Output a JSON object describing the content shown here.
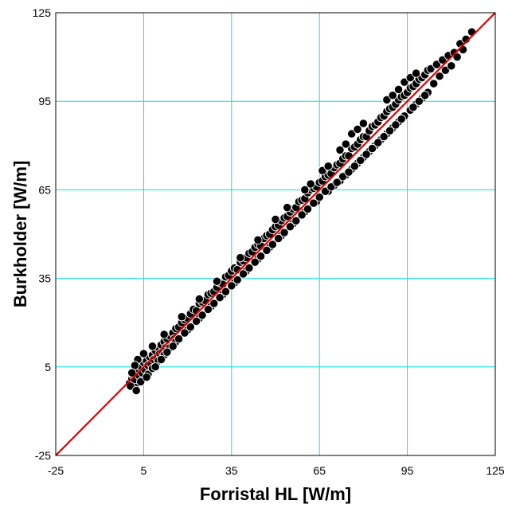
{
  "chart_data": {
    "type": "scatter",
    "title": "",
    "xlabel": "Forristal HL [W/m]",
    "ylabel": "Burkholder [W/m]",
    "xlim": [
      -25,
      125
    ],
    "ylim": [
      -25,
      125
    ],
    "x_ticks": [
      "-25",
      "5",
      "35",
      "65",
      "95",
      "125"
    ],
    "y_ticks": [
      "-25",
      "5",
      "35",
      "65",
      "95",
      "125"
    ],
    "grid": true,
    "legend": "none",
    "colors": {
      "points": "#000000",
      "point_edge": "#ffffff",
      "reference_line": "#e00000",
      "grid_light": "#00e5e5",
      "grid_gray": "#a0a0a0",
      "frame": "#000000"
    },
    "reference_line": {
      "x": [
        -25,
        125
      ],
      "y": [
        -25,
        125
      ]
    },
    "series": [
      {
        "points": [
          [
            0.2,
            -0.5
          ],
          [
            1.0,
            1.0
          ],
          [
            1.5,
            2.0
          ],
          [
            2.0,
            0.5
          ],
          [
            2.2,
            -2.0
          ],
          [
            3.0,
            3.5
          ],
          [
            3.5,
            2.0
          ],
          [
            4.0,
            5.0
          ],
          [
            4.5,
            3.0
          ],
          [
            5.0,
            6.5
          ],
          [
            5.5,
            4.0
          ],
          [
            6.0,
            7.0
          ],
          [
            6.5,
            5.5
          ],
          [
            7.0,
            8.5
          ],
          [
            7.5,
            6.0
          ],
          [
            8.0,
            9.0
          ],
          [
            8.5,
            7.5
          ],
          [
            9.0,
            10.5
          ],
          [
            9.5,
            8.0
          ],
          [
            10.0,
            11.5
          ],
          [
            10.5,
            9.5
          ],
          [
            11.0,
            12.5
          ],
          [
            11.5,
            10.0
          ],
          [
            12.0,
            13.5
          ],
          [
            12.5,
            11.5
          ],
          [
            13.0,
            14.5
          ],
          [
            13.5,
            12.0
          ],
          [
            14.0,
            15.5
          ],
          [
            15.0,
            16.5
          ],
          [
            15.5,
            14.5
          ],
          [
            16.0,
            18.0
          ],
          [
            17.0,
            18.5
          ],
          [
            18.0,
            20.0
          ],
          [
            19.0,
            21.0
          ],
          [
            20.0,
            21.5
          ],
          [
            21.0,
            23.0
          ],
          [
            22.0,
            24.5
          ],
          [
            23.0,
            24.0
          ],
          [
            24.0,
            26.5
          ],
          [
            25.0,
            27.0
          ],
          [
            26.0,
            27.5
          ],
          [
            27.0,
            29.5
          ],
          [
            28.0,
            30.0
          ],
          [
            29.0,
            30.5
          ],
          [
            30.0,
            32.0
          ],
          [
            31.0,
            33.5
          ],
          [
            32.0,
            33.0
          ],
          [
            33.0,
            35.5
          ],
          [
            34.0,
            36.0
          ],
          [
            35.0,
            37.5
          ],
          [
            36.0,
            38.5
          ],
          [
            37.0,
            38.0
          ],
          [
            38.0,
            40.5
          ],
          [
            39.0,
            41.0
          ],
          [
            40.0,
            42.0
          ],
          [
            41.0,
            43.5
          ],
          [
            42.0,
            44.0
          ],
          [
            43.0,
            45.5
          ],
          [
            44.0,
            46.5
          ],
          [
            45.0,
            46.0
          ],
          [
            46.0,
            48.5
          ],
          [
            47.0,
            49.5
          ],
          [
            48.0,
            50.0
          ],
          [
            49.0,
            51.5
          ],
          [
            50.0,
            52.5
          ],
          [
            51.0,
            53.0
          ],
          [
            52.0,
            54.5
          ],
          [
            53.0,
            55.5
          ],
          [
            54.0,
            56.0
          ],
          [
            55.0,
            57.5
          ],
          [
            56.0,
            58.5
          ],
          [
            57.0,
            59.0
          ],
          [
            58.0,
            61.0
          ],
          [
            59.0,
            61.5
          ],
          [
            60.0,
            62.0
          ],
          [
            61.0,
            64.0
          ],
          [
            62.0,
            65.0
          ],
          [
            63.0,
            65.5
          ],
          [
            64.0,
            66.0
          ],
          [
            65.0,
            67.5
          ],
          [
            66.0,
            68.0
          ],
          [
            67.0,
            69.5
          ],
          [
            68.0,
            70.0
          ],
          [
            69.0,
            70.5
          ],
          [
            70.0,
            72.5
          ],
          [
            71.0,
            73.5
          ],
          [
            72.0,
            74.0
          ],
          [
            73.0,
            75.5
          ],
          [
            74.0,
            76.5
          ],
          [
            75.0,
            76.5
          ],
          [
            76.0,
            79.0
          ],
          [
            77.0,
            79.5
          ],
          [
            78.0,
            80.5
          ],
          [
            79.0,
            82.0
          ],
          [
            80.0,
            83.0
          ],
          [
            81.0,
            83.0
          ],
          [
            82.0,
            85.0
          ],
          [
            83.0,
            86.5
          ],
          [
            84.0,
            87.0
          ],
          [
            85.0,
            88.0
          ],
          [
            86.0,
            89.5
          ],
          [
            87.0,
            90.0
          ],
          [
            88.0,
            91.5
          ],
          [
            89.0,
            92.5
          ],
          [
            90.0,
            93.0
          ],
          [
            91.0,
            94.0
          ],
          [
            92.0,
            95.5
          ],
          [
            93.0,
            96.5
          ],
          [
            94.0,
            97.0
          ],
          [
            95.0,
            98.0
          ],
          [
            96.0,
            99.5
          ],
          [
            97.0,
            100.0
          ],
          [
            98.0,
            101.0
          ],
          [
            99.0,
            102.5
          ],
          [
            100.0,
            103.0
          ],
          [
            101.0,
            104.0
          ],
          [
            102.0,
            105.5
          ],
          [
            103.0,
            106.0
          ],
          [
            105.0,
            107.5
          ],
          [
            107.0,
            109.0
          ],
          [
            109.0,
            110.5
          ],
          [
            111.0,
            111.5
          ],
          [
            113.0,
            114.5
          ],
          [
            115.0,
            116.0
          ],
          [
            117.0,
            118.5
          ],
          [
            4.0,
            0.0
          ],
          [
            6.5,
            2.5
          ],
          [
            8.0,
            4.5
          ],
          [
            10.0,
            7.0
          ],
          [
            12.0,
            9.0
          ],
          [
            14.0,
            11.5
          ],
          [
            16.0,
            13.5
          ],
          [
            20.0,
            17.5
          ],
          [
            24.0,
            21.5
          ],
          [
            28.0,
            25.5
          ],
          [
            32.0,
            29.5
          ],
          [
            36.0,
            33.5
          ],
          [
            40.0,
            37.5
          ],
          [
            44.0,
            41.5
          ],
          [
            48.0,
            45.5
          ],
          [
            52.0,
            49.5
          ],
          [
            56.0,
            53.5
          ],
          [
            60.0,
            57.5
          ],
          [
            64.0,
            61.0
          ],
          [
            68.0,
            64.5
          ],
          [
            70.0,
            66.5
          ],
          [
            72.0,
            68.0
          ],
          [
            74.0,
            70.0
          ],
          [
            76.0,
            72.0
          ],
          [
            78.0,
            74.0
          ],
          [
            80.0,
            76.0
          ],
          [
            82.0,
            78.0
          ],
          [
            84.0,
            80.0
          ],
          [
            86.0,
            82.0
          ],
          [
            88.0,
            84.0
          ],
          [
            90.0,
            86.0
          ],
          [
            92.0,
            88.0
          ],
          [
            94.0,
            90.0
          ],
          [
            96.0,
            92.0
          ],
          [
            98.0,
            94.0
          ],
          [
            100.0,
            96.0
          ],
          [
            102.0,
            98.0
          ],
          [
            88.0,
            95.5
          ],
          [
            90.0,
            97.0
          ],
          [
            92.0,
            99.0
          ],
          [
            94.0,
            101.5
          ],
          [
            96.0,
            103.0
          ],
          [
            98.0,
            104.5
          ],
          [
            76.0,
            84.0
          ],
          [
            78.0,
            85.5
          ],
          [
            80.0,
            87.5
          ],
          [
            72.0,
            78.5
          ],
          [
            74.0,
            80.5
          ],
          [
            66.0,
            71.5
          ],
          [
            68.0,
            73.0
          ],
          [
            60.0,
            65.0
          ],
          [
            62.0,
            67.0
          ],
          [
            50.0,
            55.0
          ],
          [
            54.0,
            59.0
          ],
          [
            44.0,
            48.0
          ],
          [
            38.0,
            42.0
          ],
          [
            30.0,
            34.0
          ],
          [
            24.0,
            28.0
          ],
          [
            18.0,
            22.0
          ],
          [
            12.0,
            16.0
          ],
          [
            8.0,
            12.0
          ],
          [
            3.0,
            7.5
          ],
          [
            2.0,
            5.5
          ],
          [
            5.0,
            9.5
          ],
          [
            1.0,
            3.0
          ],
          [
            0.5,
            -1.5
          ],
          [
            2.5,
            -3.0
          ],
          [
            6.0,
            1.5
          ],
          [
            9.0,
            5.0
          ],
          [
            11.0,
            7.5
          ],
          [
            13.0,
            10.0
          ],
          [
            15.0,
            12.0
          ],
          [
            17.0,
            14.5
          ],
          [
            19.0,
            16.5
          ],
          [
            21.0,
            18.5
          ],
          [
            23.0,
            20.5
          ],
          [
            25.0,
            22.5
          ],
          [
            27.0,
            24.5
          ],
          [
            29.0,
            26.5
          ],
          [
            31.0,
            28.5
          ],
          [
            33.0,
            30.5
          ],
          [
            35.0,
            32.5
          ],
          [
            37.0,
            34.5
          ],
          [
            39.0,
            36.5
          ],
          [
            41.0,
            38.5
          ],
          [
            43.0,
            40.5
          ],
          [
            45.0,
            42.5
          ],
          [
            47.0,
            44.5
          ],
          [
            49.0,
            46.5
          ],
          [
            51.0,
            48.5
          ],
          [
            53.0,
            50.5
          ],
          [
            55.0,
            52.5
          ],
          [
            57.0,
            54.5
          ],
          [
            59.0,
            56.5
          ],
          [
            61.0,
            58.5
          ],
          [
            63.0,
            60.5
          ],
          [
            65.0,
            62.5
          ],
          [
            67.0,
            64.5
          ],
          [
            69.0,
            66.0
          ],
          [
            71.0,
            67.5
          ],
          [
            73.0,
            69.5
          ],
          [
            75.0,
            71.0
          ],
          [
            77.0,
            73.0
          ],
          [
            79.0,
            75.0
          ],
          [
            81.0,
            77.0
          ],
          [
            83.0,
            79.0
          ],
          [
            85.0,
            81.0
          ],
          [
            87.0,
            83.0
          ],
          [
            89.0,
            85.0
          ],
          [
            91.0,
            87.0
          ],
          [
            93.0,
            89.0
          ],
          [
            97.0,
            93.0
          ],
          [
            99.0,
            95.0
          ],
          [
            101.0,
            97.0
          ],
          [
            104.0,
            101.0
          ],
          [
            106.0,
            103.5
          ],
          [
            108.0,
            105.5
          ],
          [
            110.0,
            107.0
          ],
          [
            112.0,
            110.0
          ],
          [
            114.0,
            112.5
          ]
        ]
      }
    ]
  }
}
